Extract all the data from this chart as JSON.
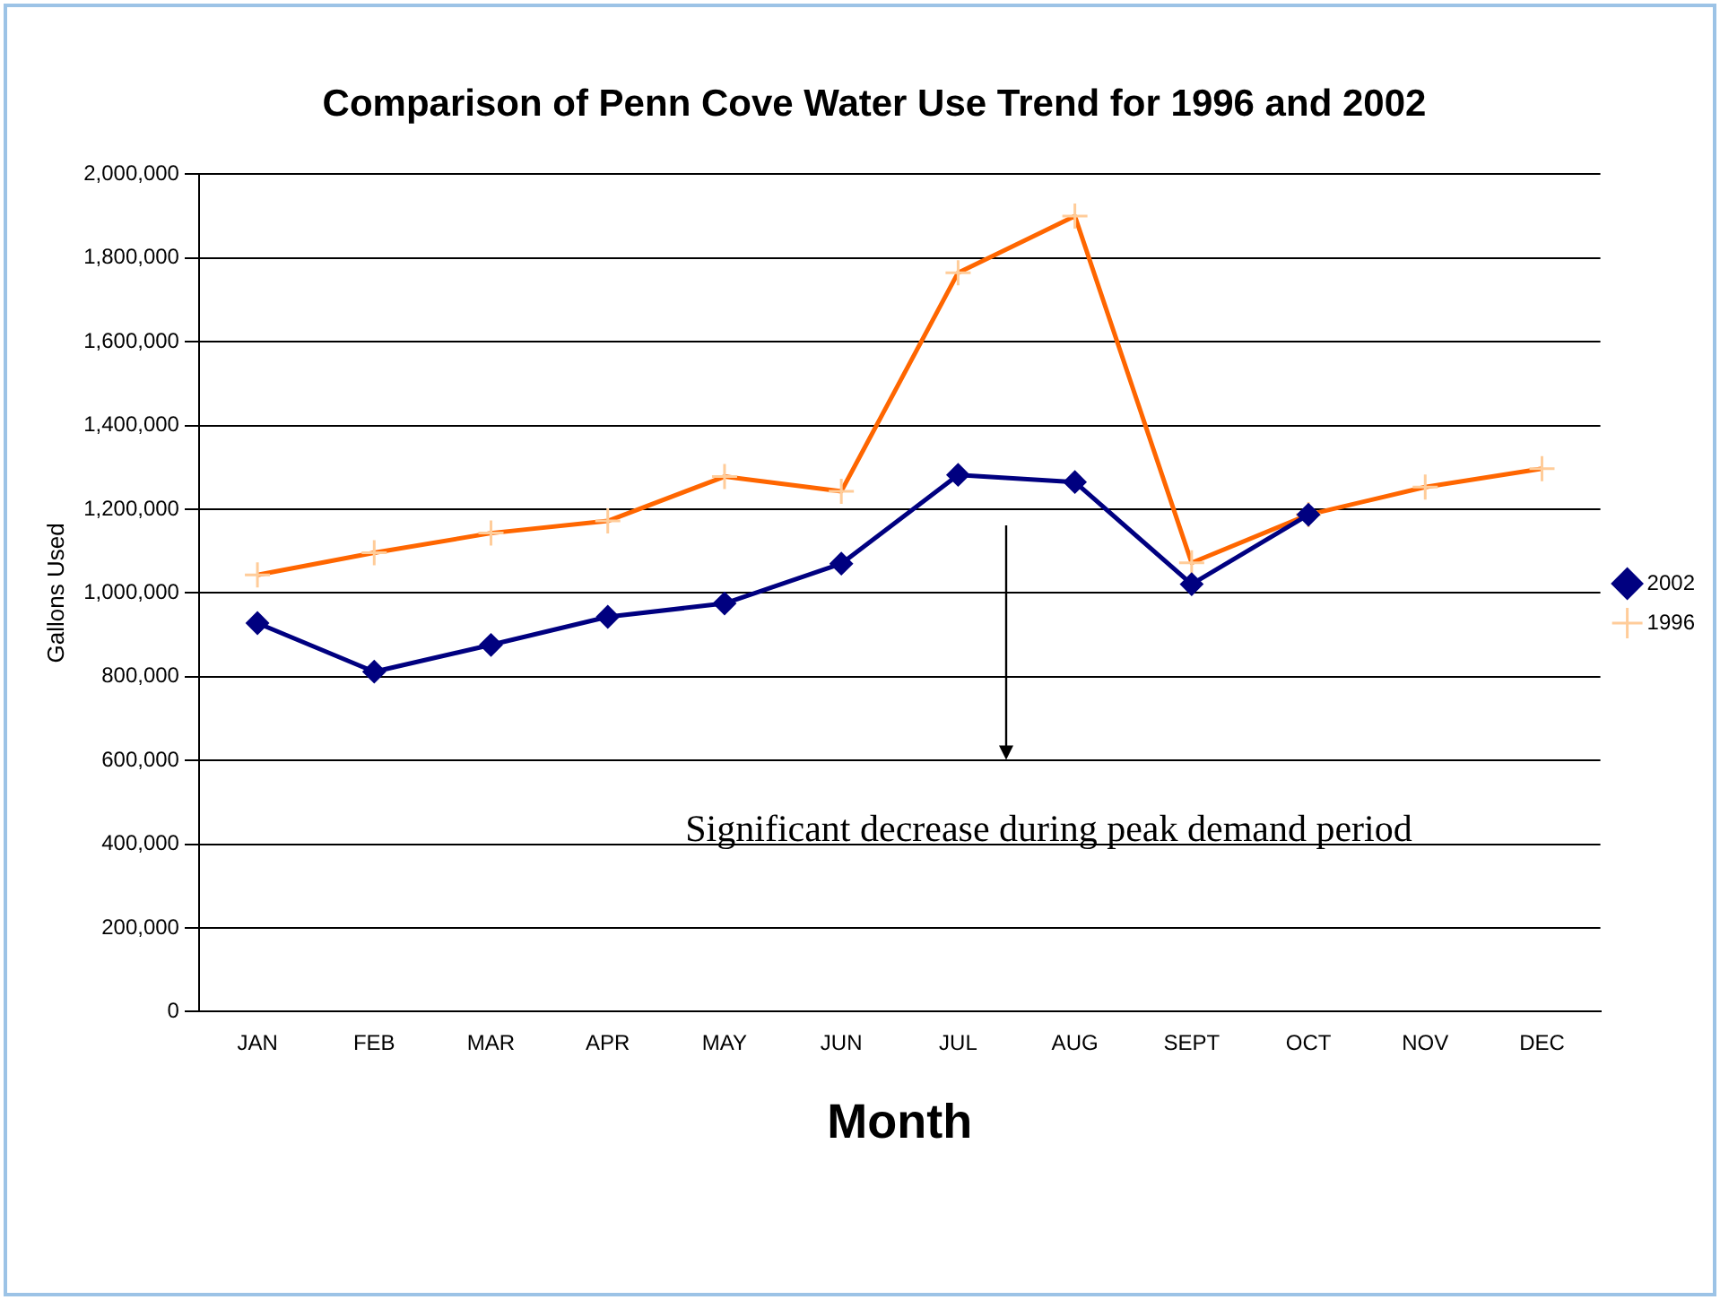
{
  "chart_data": {
    "type": "line",
    "title": "Comparison of Penn Cove Water Use Trend for 1996 and 2002",
    "xlabel": "Month",
    "ylabel": "Gallons Used",
    "categories": [
      "JAN",
      "FEB",
      "MAR",
      "APR",
      "MAY",
      "JUN",
      "JUL",
      "AUG",
      "SEPT",
      "OCT",
      "NOV",
      "DEC"
    ],
    "series": [
      {
        "name": "2002",
        "color": "#000080",
        "marker": "diamond",
        "values": [
          928000,
          812000,
          876000,
          943000,
          975000,
          1070000,
          1282000,
          1265000,
          1021000,
          1187000,
          null,
          null
        ]
      },
      {
        "name": "1996",
        "color": "#ff6600",
        "marker": "cross",
        "values": [
          1043000,
          1096000,
          1143000,
          1172000,
          1278000,
          1243000,
          1765000,
          1900000,
          1072000,
          1187000,
          1253000,
          1297000
        ]
      }
    ],
    "ylim": [
      0,
      2000000
    ],
    "yticks": [
      0,
      {
        "value": 200000,
        "label": "200,000"
      },
      {
        "value": 400000,
        "label": "400,000"
      },
      {
        "value": 600000,
        "label": "600,000"
      },
      {
        "value": 800000,
        "label": "800,000"
      },
      {
        "value": 1000000,
        "label": "1,000,000"
      },
      {
        "value": 1200000,
        "label": "1,200,000"
      },
      {
        "value": 1400000,
        "label": "1,400,000"
      },
      {
        "value": 1600000,
        "label": "1,600,000"
      },
      {
        "value": 1800000,
        "label": "1,800,000"
      },
      {
        "value": 2000000,
        "label": "2,000,000"
      }
    ],
    "grid": "y",
    "legend": "right",
    "annotations": [
      "Significant decrease during peak demand period"
    ]
  }
}
